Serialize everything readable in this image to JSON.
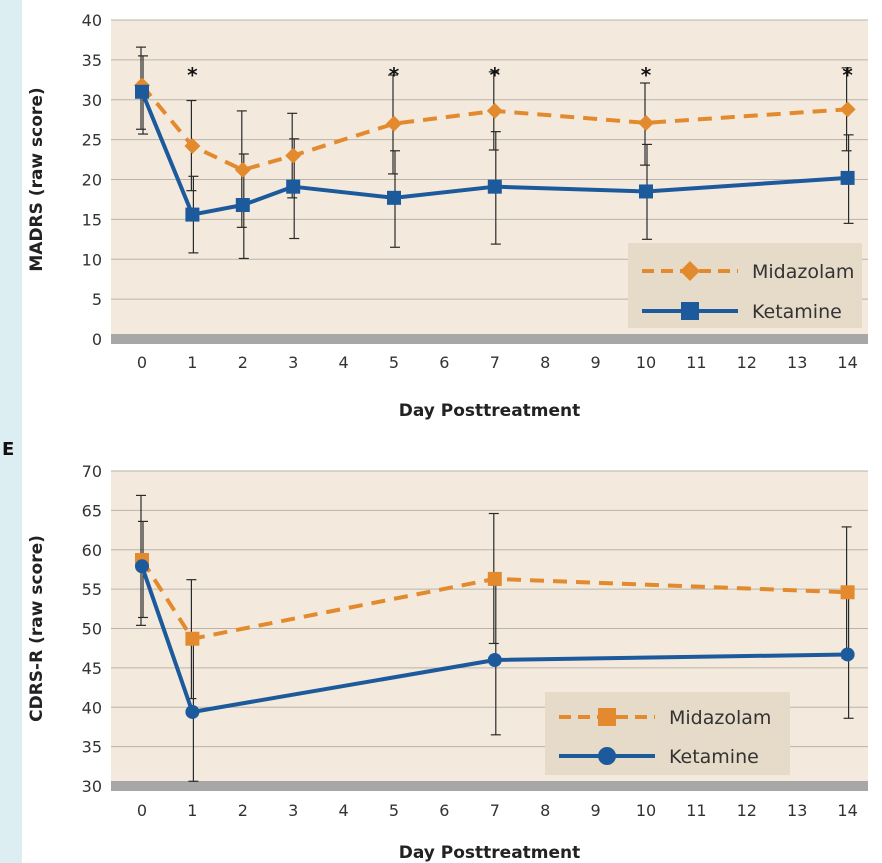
{
  "colors": {
    "page_band": "#ddeef3",
    "plot_bg": "#f3eadd",
    "grid": "#b9b3aa",
    "baseline": "#a7a7a7",
    "legend_bg": "#e6dbc8",
    "error_bar": "#2a2a2a",
    "midazolam": "#e38a2e",
    "ketamine": "#1d5a9c",
    "text": "#333333"
  },
  "chart_data": [
    {
      "type": "line",
      "panel_label": "",
      "xlabel": "Day Posttreatment",
      "ylabel": "MADRS (raw score)",
      "x_ticks": [
        0,
        1,
        2,
        3,
        4,
        5,
        6,
        7,
        8,
        9,
        10,
        11,
        12,
        13,
        14
      ],
      "ylim": [
        0,
        40
      ],
      "y_ticks": [
        0,
        5,
        10,
        15,
        20,
        25,
        30,
        35,
        40
      ],
      "grid": true,
      "legend_position": "bottom-right",
      "significance_marker": "*",
      "significant_days": [
        1,
        5,
        7,
        10,
        14
      ],
      "series": [
        {
          "name": "Midazolam",
          "marker": "diamond",
          "line_style": "dashed",
          "x": [
            0,
            1,
            2,
            3,
            5,
            7,
            10,
            14
          ],
          "y": [
            31.8,
            24.2,
            21.2,
            23.0,
            27.0,
            28.6,
            27.1,
            28.8
          ],
          "err_low": [
            26.3,
            18.6,
            14.0,
            17.7,
            20.7,
            23.7,
            21.8,
            23.6
          ],
          "err_high": [
            36.6,
            29.9,
            28.6,
            28.3,
            33.1,
            33.5,
            32.1,
            34.0
          ]
        },
        {
          "name": "Ketamine",
          "marker": "square",
          "line_style": "solid",
          "x": [
            0,
            1,
            2,
            3,
            5,
            7,
            10,
            14
          ],
          "y": [
            31.0,
            15.6,
            16.8,
            19.1,
            17.7,
            19.1,
            18.5,
            20.2
          ],
          "err_low": [
            25.7,
            10.8,
            10.1,
            12.6,
            11.5,
            11.9,
            12.5,
            14.5
          ],
          "err_high": [
            35.5,
            20.4,
            23.2,
            25.1,
            23.6,
            26.0,
            24.4,
            25.6
          ]
        }
      ]
    },
    {
      "type": "line",
      "panel_label": "E",
      "xlabel": "Day Posttreatment",
      "ylabel": "CDRS-R (raw score)",
      "x_ticks": [
        0,
        1,
        2,
        3,
        4,
        5,
        6,
        7,
        8,
        9,
        10,
        11,
        12,
        13,
        14
      ],
      "ylim": [
        30,
        70
      ],
      "y_ticks": [
        30,
        35,
        40,
        45,
        50,
        55,
        60,
        65,
        70
      ],
      "grid": true,
      "legend_position": "bottom-right",
      "series": [
        {
          "name": "Midazolam",
          "marker": "square",
          "line_style": "dashed",
          "x": [
            0,
            1,
            7,
            14
          ],
          "y": [
            58.7,
            48.7,
            56.3,
            54.6
          ],
          "err_low": [
            50.4,
            41.1,
            48.1,
            46.2
          ],
          "err_high": [
            66.9,
            56.2,
            64.6,
            62.9
          ]
        },
        {
          "name": "Ketamine",
          "marker": "circle",
          "line_style": "solid",
          "x": [
            0,
            1,
            7,
            14
          ],
          "y": [
            57.9,
            39.4,
            46.0,
            46.7
          ],
          "err_low": [
            51.4,
            30.6,
            36.5,
            38.6
          ],
          "err_high": [
            63.6,
            48.2,
            55.5,
            54.8
          ]
        }
      ]
    }
  ]
}
